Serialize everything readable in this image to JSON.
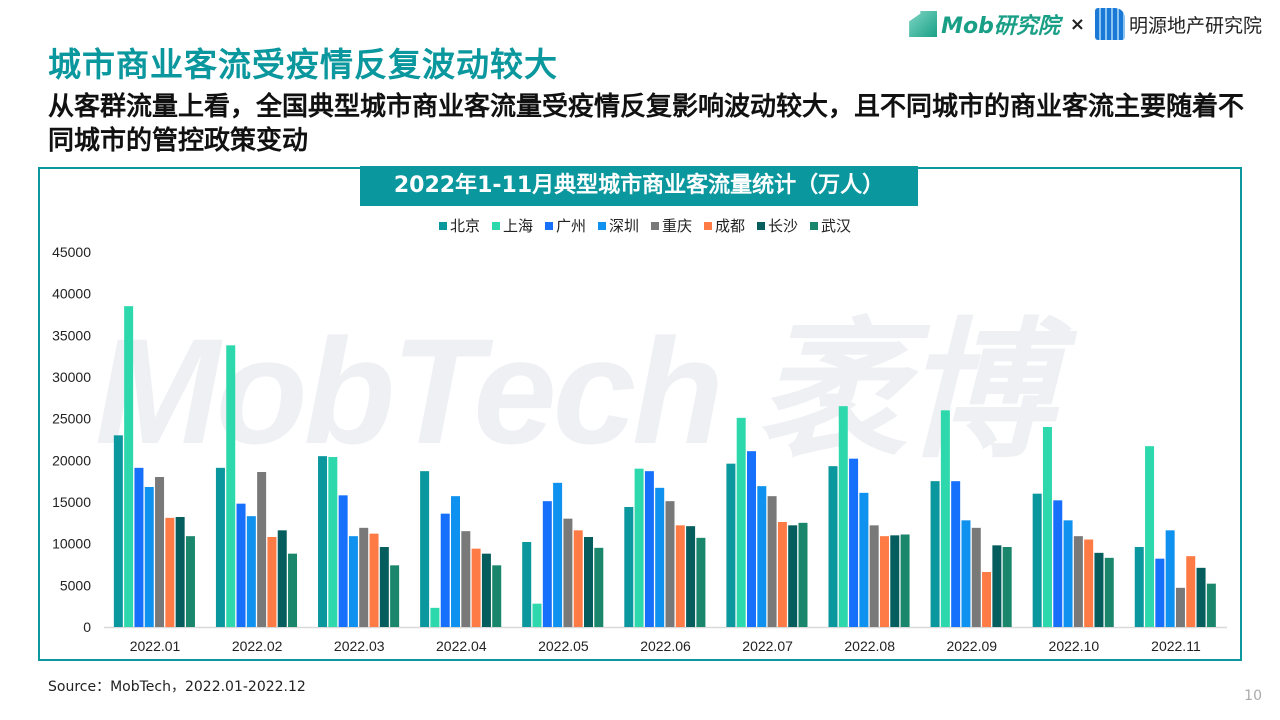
{
  "header": {
    "title": "城市商业客流受疫情反复波动较大",
    "subtitle": "从客群流量上看，全国典型城市商业客流量受疫情反复影响波动较大，且不同城市的商业客流主要随着不同城市的管控政策变动",
    "logo_mob": "Mob研究院",
    "logo_separator": "×",
    "logo_partner": "明源地产研究院"
  },
  "watermark": "MobTech 袤博",
  "chart_data": {
    "type": "bar",
    "title": "2022年1-11月典型城市商业客流量统计（万人）",
    "categories": [
      "2022.01",
      "2022.02",
      "2022.03",
      "2022.04",
      "2022.05",
      "2022.06",
      "2022.07",
      "2022.08",
      "2022.09",
      "2022.10",
      "2022.11"
    ],
    "ylim": [
      0,
      45000
    ],
    "yticks": [
      "0",
      "5000",
      "10000",
      "15000",
      "20000",
      "25000",
      "30000",
      "35000",
      "40000",
      "45000"
    ],
    "legend_position": "top",
    "grid": false,
    "series": [
      {
        "name": "北京",
        "color": "#0a979d",
        "values": [
          23000,
          19100,
          20500,
          18700,
          10200,
          14400,
          19600,
          19300,
          17500,
          16000,
          9600
        ]
      },
      {
        "name": "上海",
        "color": "#2ed8ad",
        "values": [
          38500,
          33800,
          20400,
          2300,
          2800,
          19000,
          25100,
          26500,
          26000,
          24000,
          21700
        ]
      },
      {
        "name": "广州",
        "color": "#1670fb",
        "values": [
          19100,
          14800,
          15800,
          13600,
          15100,
          18700,
          21100,
          20200,
          17500,
          15200,
          8200
        ]
      },
      {
        "name": "深圳",
        "color": "#0f91ef",
        "values": [
          16800,
          13300,
          10900,
          15700,
          17300,
          16700,
          16900,
          16100,
          12800,
          12800,
          11600
        ]
      },
      {
        "name": "重庆",
        "color": "#797979",
        "values": [
          18000,
          18600,
          11900,
          11500,
          13000,
          15100,
          15700,
          12200,
          11900,
          10900,
          4700
        ]
      },
      {
        "name": "成都",
        "color": "#ff7b45",
        "values": [
          13100,
          10800,
          11200,
          9400,
          11600,
          12200,
          12600,
          10900,
          6600,
          10500,
          8500
        ]
      },
      {
        "name": "长沙",
        "color": "#055d5e",
        "values": [
          13200,
          11600,
          9600,
          8800,
          10800,
          12100,
          12200,
          11000,
          9800,
          8900,
          7100
        ]
      },
      {
        "name": "武汉",
        "color": "#1a866b",
        "values": [
          10900,
          8800,
          7400,
          7400,
          9500,
          10700,
          12500,
          11100,
          9600,
          8300,
          5200
        ]
      }
    ]
  },
  "footer": {
    "source": "Source：MobTech，2022.01-2022.12",
    "page_number": "10"
  }
}
